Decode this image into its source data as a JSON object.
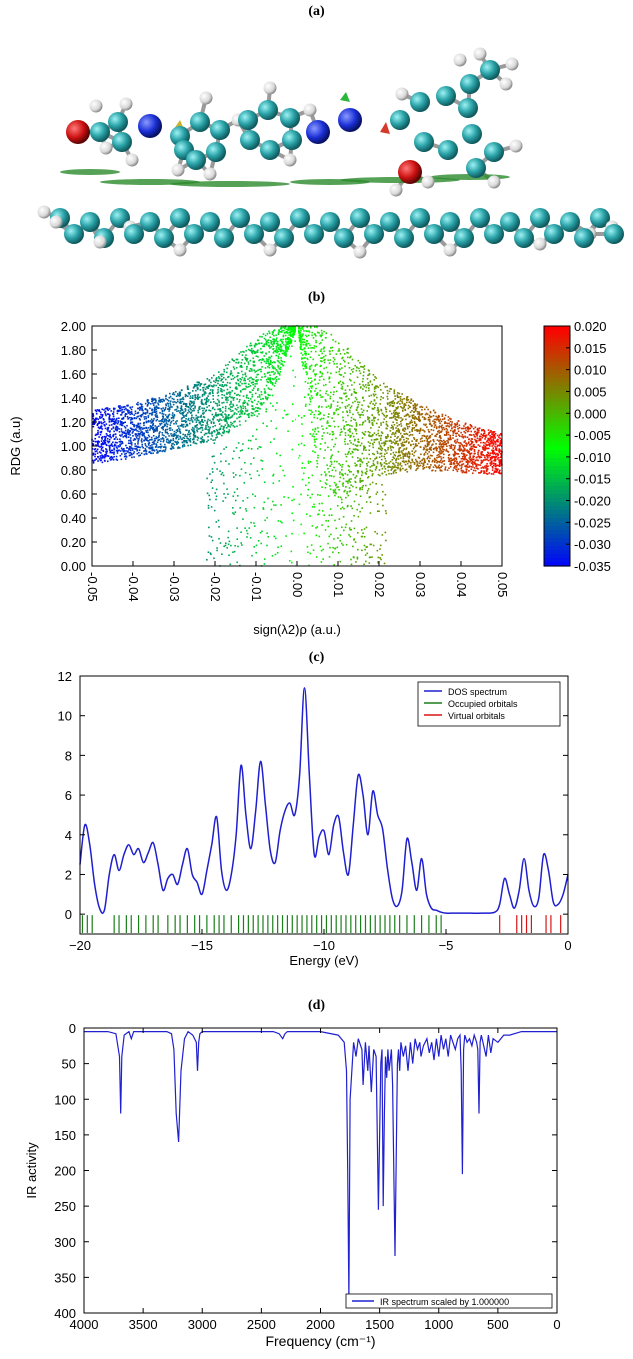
{
  "panels": {
    "a": {
      "label": "(a)"
    },
    "b": {
      "label": "(b)"
    },
    "c": {
      "label": "(c)"
    },
    "d": {
      "label": "(d)"
    }
  },
  "colors": {
    "carbon": "#2aa3a8",
    "oxygen": "#cc1111",
    "nitrogen": "#1a2fd6",
    "hydrogen": "#e9e9e9",
    "dos_line": "#1f1fd0",
    "occupied": "#1a7f1a",
    "virtual": "#d81414",
    "ir_line": "#2020d0"
  },
  "chart_data": [
    {
      "id": "b",
      "type": "scatter",
      "title": "",
      "xlabel": "sign(λ2)ρ (a.u.)",
      "ylabel": "RDG (a.u)",
      "xlim": [
        -0.05,
        0.05
      ],
      "ylim": [
        0,
        2
      ],
      "xticks": [
        "-0.05",
        "-0.04",
        "-0.03",
        "-0.02",
        "-0.01",
        "0.00",
        "0.01",
        "0.02",
        "0.03",
        "0.04",
        "0.05"
      ],
      "yticks": [
        "0.00",
        "0.20",
        "0.40",
        "0.60",
        "0.80",
        "1.00",
        "1.20",
        "1.40",
        "1.60",
        "1.80",
        "2.00"
      ],
      "colorbar": {
        "ticks": [
          "0.020",
          "0.015",
          "0.010",
          "0.005",
          "0.000",
          "-0.005",
          "-0.010",
          "-0.015",
          "-0.020",
          "-0.025",
          "-0.030",
          "-0.035"
        ],
        "range": [
          -0.035,
          0.02
        ],
        "colors": [
          "#0000ff",
          "#00ff00",
          "#ff0000"
        ]
      },
      "approx_series": [
        {
          "x": [
            -0.05,
            -0.04,
            -0.03,
            -0.02,
            -0.01,
            -0.005,
            0.0
          ],
          "y_band_low": [
            0.85,
            0.9,
            0.97,
            1.05,
            1.25,
            1.5,
            2.0
          ],
          "y_band_high": [
            1.3,
            1.35,
            1.45,
            1.6,
            1.9,
            2.0,
            2.0
          ]
        },
        {
          "x": [
            0.0,
            0.005,
            0.01,
            0.02,
            0.03,
            0.04,
            0.05
          ],
          "y_band_low": [
            2.0,
            0.8,
            0.5,
            0.75,
            0.8,
            0.78,
            0.75
          ],
          "y_band_high": [
            2.0,
            2.0,
            1.9,
            1.55,
            1.35,
            1.2,
            1.1
          ]
        }
      ]
    },
    {
      "id": "c",
      "type": "line",
      "xlabel": "Energy (eV)",
      "ylabel": "",
      "xlim": [
        -20,
        0
      ],
      "ylim": [
        -1,
        12
      ],
      "xticks": [
        "−20",
        "−15",
        "−10",
        "−5",
        "0"
      ],
      "yticks": [
        "0",
        "2",
        "4",
        "6",
        "8",
        "10",
        "12"
      ],
      "legend": [
        "DOS spectrum",
        "Occupied orbitals",
        "Virtual orbitals"
      ],
      "legend_position": "top-right",
      "series": [
        {
          "name": "DOS spectrum",
          "x": [
            -20,
            -19.8,
            -19.6,
            -19.4,
            -19.2,
            -19.0,
            -18.8,
            -18.6,
            -18.4,
            -18.2,
            -18.0,
            -17.8,
            -17.6,
            -17.4,
            -17.2,
            -17.0,
            -16.8,
            -16.6,
            -16.4,
            -16.2,
            -16.0,
            -15.8,
            -15.6,
            -15.4,
            -15.2,
            -15.0,
            -14.8,
            -14.6,
            -14.4,
            -14.2,
            -14.0,
            -13.8,
            -13.6,
            -13.4,
            -13.2,
            -13.0,
            -12.8,
            -12.6,
            -12.4,
            -12.2,
            -12.0,
            -11.8,
            -11.6,
            -11.4,
            -11.2,
            -11.0,
            -10.8,
            -10.6,
            -10.4,
            -10.2,
            -10.0,
            -9.8,
            -9.6,
            -9.4,
            -9.2,
            -9.0,
            -8.8,
            -8.6,
            -8.4,
            -8.2,
            -8.0,
            -7.8,
            -7.6,
            -7.4,
            -7.2,
            -7.0,
            -6.8,
            -6.6,
            -6.4,
            -6.2,
            -6.0,
            -5.8,
            -5.6,
            -5.4,
            -5.2,
            -5.0,
            -4.8,
            -4.5,
            -4.0,
            -3.5,
            -3.0,
            -2.8,
            -2.6,
            -2.4,
            -2.2,
            -2.0,
            -1.8,
            -1.6,
            -1.4,
            -1.2,
            -1.0,
            -0.8,
            -0.6,
            -0.4,
            -0.2,
            0
          ],
          "y": [
            2.5,
            4.5,
            3.5,
            1.5,
            0.3,
            0.2,
            2.0,
            3.0,
            2.2,
            3.0,
            3.5,
            3.0,
            3.3,
            2.6,
            3.1,
            3.6,
            2.5,
            1.2,
            1.8,
            2.0,
            1.5,
            2.5,
            3.3,
            2.0,
            1.6,
            1.0,
            2.2,
            3.5,
            4.9,
            2.2,
            1.2,
            2.0,
            4.0,
            7.5,
            5.0,
            3.3,
            5.2,
            7.7,
            5.5,
            3.2,
            2.6,
            4.2,
            5.2,
            5.6,
            5.0,
            7.0,
            11.4,
            7.0,
            3.0,
            3.9,
            4.2,
            3.0,
            4.5,
            4.9,
            3.1,
            2.0,
            4.5,
            7.0,
            6.0,
            4.0,
            6.2,
            5.0,
            4.3,
            2.3,
            0.8,
            0.4,
            1.2,
            3.8,
            2.6,
            1.2,
            2.8,
            1.0,
            0.3,
            0.2,
            0.1,
            0.05,
            0.05,
            0.05,
            0.05,
            0.05,
            0.1,
            0.5,
            1.8,
            1.0,
            0.3,
            1.2,
            2.8,
            1.2,
            0.4,
            0.8,
            3.0,
            2.2,
            0.6,
            0.5,
            1.0,
            2.0
          ]
        }
      ],
      "occupied_orbitals": [
        -19.9,
        -19.7,
        -19.5,
        -18.6,
        -18.4,
        -18.1,
        -17.9,
        -17.6,
        -17.3,
        -17.0,
        -16.8,
        -16.4,
        -16.1,
        -15.9,
        -15.6,
        -15.3,
        -15.1,
        -14.8,
        -14.5,
        -14.3,
        -14.1,
        -13.8,
        -13.5,
        -13.3,
        -13.1,
        -12.9,
        -12.7,
        -12.5,
        -12.3,
        -12.1,
        -11.9,
        -11.7,
        -11.5,
        -11.3,
        -11.1,
        -10.9,
        -10.7,
        -10.5,
        -10.3,
        -10.1,
        -9.9,
        -9.7,
        -9.5,
        -9.3,
        -9.1,
        -8.9,
        -8.7,
        -8.5,
        -8.3,
        -8.1,
        -7.9,
        -7.7,
        -7.5,
        -7.3,
        -7.1,
        -6.9,
        -6.6,
        -6.3,
        -6.0,
        -5.7,
        -5.4,
        -5.2
      ],
      "virtual_orbitals": [
        -2.8,
        -2.1,
        -1.9,
        -1.7,
        -1.5,
        -0.9,
        -0.7,
        -0.3
      ]
    },
    {
      "id": "d",
      "type": "line",
      "xlabel": "Frequency (cm⁻¹)",
      "ylabel": "IR activity",
      "xlim": [
        4000,
        0
      ],
      "ylim": [
        400,
        0
      ],
      "xticks": [
        "4000",
        "3500",
        "3000",
        "2500",
        "2000",
        "1500",
        "1000",
        "500",
        "0"
      ],
      "yticks": [
        "0",
        "50",
        "100",
        "150",
        "200",
        "250",
        "300",
        "350",
        "400"
      ],
      "legend": [
        "IR spectrum scaled by 1.000000"
      ],
      "legend_position": "bottom-right",
      "series": [
        {
          "name": "IR spectrum scaled by 1.000000",
          "x": [
            4000,
            3800,
            3730,
            3700,
            3690,
            3680,
            3660,
            3620,
            3600,
            3580,
            3300,
            3260,
            3240,
            3220,
            3200,
            3180,
            3150,
            3120,
            3080,
            3050,
            3040,
            3030,
            3020,
            3000,
            2900,
            2400,
            2350,
            2320,
            2300,
            2280,
            2000,
            1850,
            1800,
            1780,
            1770,
            1760,
            1750,
            1720,
            1700,
            1680,
            1650,
            1640,
            1620,
            1600,
            1590,
            1570,
            1550,
            1530,
            1510,
            1490,
            1480,
            1470,
            1460,
            1450,
            1440,
            1430,
            1420,
            1400,
            1390,
            1370,
            1350,
            1340,
            1330,
            1320,
            1300,
            1280,
            1260,
            1240,
            1220,
            1200,
            1180,
            1160,
            1150,
            1130,
            1100,
            1080,
            1060,
            1040,
            1020,
            1000,
            980,
            960,
            940,
            920,
            900,
            880,
            860,
            840,
            820,
            810,
            800,
            790,
            780,
            760,
            740,
            720,
            700,
            680,
            670,
            660,
            650,
            640,
            620,
            600,
            580,
            560,
            540,
            500,
            450,
            400,
            300,
            200,
            100,
            0
          ],
          "y": [
            5,
            5,
            8,
            40,
            120,
            40,
            10,
            5,
            15,
            5,
            5,
            8,
            30,
            120,
            160,
            60,
            15,
            5,
            10,
            20,
            60,
            20,
            8,
            5,
            5,
            5,
            8,
            15,
            8,
            5,
            5,
            10,
            20,
            60,
            200,
            380,
            100,
            20,
            40,
            15,
            30,
            80,
            20,
            60,
            25,
            90,
            30,
            40,
            255,
            50,
            30,
            250,
            120,
            40,
            70,
            30,
            60,
            30,
            80,
            320,
            50,
            30,
            60,
            20,
            40,
            25,
            60,
            20,
            50,
            15,
            30,
            20,
            40,
            25,
            15,
            35,
            20,
            45,
            15,
            40,
            10,
            30,
            15,
            40,
            10,
            20,
            30,
            15,
            10,
            60,
            205,
            30,
            10,
            20,
            15,
            25,
            10,
            20,
            30,
            120,
            20,
            10,
            25,
            40,
            10,
            35,
            15,
            20,
            10,
            10,
            5,
            5,
            5,
            5
          ]
        }
      ]
    }
  ]
}
